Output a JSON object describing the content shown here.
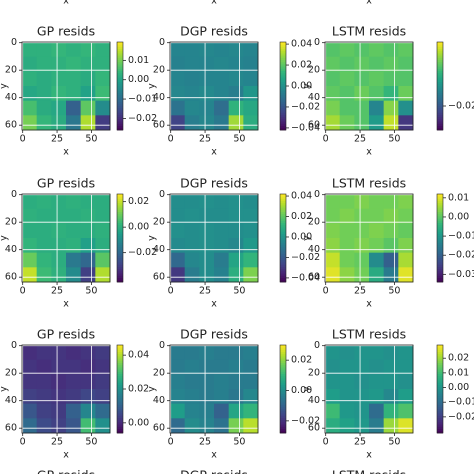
{
  "chart_data": [
    {
      "type": "heatmap",
      "title": "GP resids",
      "xlabel": "x",
      "ylabel": "y",
      "xlim": [
        -0.5,
        63.5
      ],
      "ylim": [
        63.5,
        -0.5
      ],
      "xticks": [
        0,
        25,
        50
      ],
      "yticks": [
        0,
        20,
        40,
        60
      ],
      "grid": true,
      "colormap": "viridis",
      "clim": [
        -0.026,
        0.0195
      ],
      "cticks": [
        {
          "value": 0.01,
          "label": "0.01"
        },
        {
          "value": 0,
          "label": "0.00"
        },
        {
          "value": -0.01,
          "label": "−0.01"
        },
        {
          "value": -0.02,
          "label": "−0.02"
        }
      ],
      "values": [
        [
          0.003,
          0.003,
          0.004,
          0.003,
          0.004,
          0.003
        ],
        [
          0.002,
          0.003,
          0.003,
          0.004,
          0.003,
          0.003
        ],
        [
          0.003,
          0.002,
          0.003,
          0.003,
          0.002,
          0.004
        ],
        [
          0.001,
          0.002,
          0.004,
          0.003,
          0.0,
          0.005
        ],
        [
          0.006,
          0.002,
          0.001,
          -0.012,
          0.008,
          -0.004
        ],
        [
          0.01,
          0.004,
          0.002,
          -0.008,
          0.014,
          -0.018
        ]
      ]
    },
    {
      "type": "heatmap",
      "title": "DGP resids",
      "xlabel": "x",
      "ylabel": "y",
      "xlim": [
        -0.5,
        63.5
      ],
      "ylim": [
        63.5,
        -0.5
      ],
      "xticks": [
        0,
        25,
        50
      ],
      "yticks": [
        0,
        20,
        40,
        60
      ],
      "grid": true,
      "colormap": "viridis",
      "clim": [
        -0.042,
        0.042
      ],
      "cticks": [
        {
          "value": 0.04,
          "label": "0.04"
        },
        {
          "value": 0.02,
          "label": "0.02"
        },
        {
          "value": 0,
          "label": "0.00"
        },
        {
          "value": -0.02,
          "label": "−0.02"
        },
        {
          "value": -0.04,
          "label": "−0.04"
        }
      ],
      "values": [
        [
          -0.004,
          -0.004,
          -0.003,
          -0.004,
          -0.003,
          -0.004
        ],
        [
          -0.005,
          -0.004,
          -0.004,
          -0.003,
          -0.004,
          -0.005
        ],
        [
          -0.004,
          -0.005,
          -0.004,
          -0.004,
          -0.003,
          -0.004
        ],
        [
          -0.003,
          -0.004,
          -0.002,
          -0.004,
          -0.006,
          0.002
        ],
        [
          -0.01,
          -0.003,
          -0.004,
          -0.012,
          0.012,
          0.008
        ],
        [
          -0.025,
          -0.006,
          -0.003,
          -0.008,
          0.03,
          0.01
        ]
      ]
    },
    {
      "type": "heatmap",
      "title": "LSTM resids",
      "xlabel": "x",
      "ylabel": "y",
      "xlim": [
        -0.5,
        63.5
      ],
      "ylim": [
        63.5,
        -0.5
      ],
      "xticks": [
        0,
        25,
        50
      ],
      "yticks": [
        0,
        20,
        40,
        60
      ],
      "grid": true,
      "colormap": "viridis",
      "clim": [
        -0.032,
        0.012
      ],
      "cticks": [
        {
          "value": -0.02,
          "label": "−0.02"
        }
      ],
      "values": [
        [
          0.0,
          0.001,
          0.0,
          0.001,
          0.0,
          0.001
        ],
        [
          0.001,
          0.0,
          0.001,
          0.0,
          0.001,
          0.0
        ],
        [
          0.0,
          0.001,
          0.0,
          0.001,
          0.0,
          0.0
        ],
        [
          0.001,
          0.0,
          0.002,
          0.0,
          -0.003,
          0.002
        ],
        [
          0.003,
          0.0,
          0.0,
          -0.012,
          0.004,
          -0.01
        ],
        [
          0.006,
          0.002,
          0.0,
          -0.008,
          0.008,
          -0.025
        ]
      ]
    },
    {
      "type": "heatmap",
      "title": "GP resids",
      "xlabel": "x",
      "ylabel": "y",
      "xlim": [
        -0.5,
        63.5
      ],
      "ylim": [
        63.5,
        -0.5
      ],
      "xticks": [
        0,
        25,
        50
      ],
      "yticks": [
        0,
        20,
        40,
        60
      ],
      "grid": true,
      "colormap": "viridis",
      "clim": [
        -0.043,
        0.026
      ],
      "cticks": [
        {
          "value": 0.02,
          "label": "0.02"
        },
        {
          "value": 0,
          "label": "0.00"
        },
        {
          "value": -0.02,
          "label": "−0.02"
        }
      ],
      "values": [
        [
          0.0,
          0.001,
          0.0,
          0.001,
          0.0,
          0.0
        ],
        [
          0.001,
          0.0,
          0.0,
          0.0,
          0.001,
          0.0
        ],
        [
          0.0,
          0.0,
          0.001,
          0.0,
          0.0,
          0.001
        ],
        [
          0.002,
          0.0,
          0.0,
          0.001,
          -0.004,
          0.0
        ],
        [
          0.01,
          0.002,
          0.0,
          -0.015,
          -0.02,
          0.008
        ],
        [
          0.02,
          0.004,
          0.001,
          -0.01,
          -0.03,
          0.018
        ]
      ]
    },
    {
      "type": "heatmap",
      "title": "DGP resids",
      "xlabel": "x",
      "ylabel": "y",
      "xlim": [
        -0.5,
        63.5
      ],
      "ylim": [
        63.5,
        -0.5
      ],
      "xticks": [
        0,
        25,
        50
      ],
      "yticks": [
        0,
        20,
        40,
        60
      ],
      "grid": true,
      "colormap": "viridis",
      "clim": [
        -0.044,
        0.042
      ],
      "cticks": [
        {
          "value": 0.04,
          "label": "0.04"
        },
        {
          "value": 0.02,
          "label": "0.02"
        },
        {
          "value": 0,
          "label": "0.00"
        },
        {
          "value": -0.02,
          "label": "−0.02"
        },
        {
          "value": -0.04,
          "label": "−0.04"
        }
      ],
      "values": [
        [
          -0.002,
          -0.002,
          -0.001,
          -0.002,
          -0.001,
          -0.002
        ],
        [
          -0.002,
          -0.001,
          -0.002,
          -0.002,
          -0.001,
          -0.001
        ],
        [
          -0.001,
          -0.002,
          -0.001,
          -0.002,
          -0.002,
          -0.001
        ],
        [
          -0.003,
          -0.002,
          -0.001,
          -0.002,
          -0.004,
          0.002
        ],
        [
          -0.015,
          -0.004,
          -0.002,
          -0.008,
          0.006,
          0.012
        ],
        [
          -0.03,
          -0.008,
          -0.002,
          -0.006,
          0.01,
          0.025
        ]
      ]
    },
    {
      "type": "heatmap",
      "title": "LSTM resids",
      "xlabel": "x",
      "ylabel": "y",
      "xlim": [
        -0.5,
        63.5
      ],
      "ylim": [
        63.5,
        -0.5
      ],
      "xticks": [
        0,
        25,
        50
      ],
      "yticks": [
        0,
        20,
        40,
        60
      ],
      "grid": true,
      "colormap": "viridis",
      "clim": [
        -0.034,
        0.012
      ],
      "cticks": [
        {
          "value": 0.01,
          "label": "0.01"
        },
        {
          "value": 0,
          "label": "0.00"
        },
        {
          "value": -0.01,
          "label": "−0.01"
        },
        {
          "value": -0.02,
          "label": "−0.02"
        },
        {
          "value": -0.03,
          "label": "−0.03"
        }
      ],
      "values": [
        [
          0.002,
          0.002,
          0.003,
          0.002,
          0.002,
          0.003
        ],
        [
          0.002,
          0.003,
          0.002,
          0.002,
          0.003,
          0.002
        ],
        [
          0.003,
          0.002,
          0.002,
          0.003,
          0.002,
          0.001
        ],
        [
          0.004,
          0.002,
          0.003,
          0.002,
          0.0,
          0.003
        ],
        [
          0.008,
          0.002,
          0.001,
          -0.012,
          -0.02,
          0.006
        ],
        [
          0.01,
          0.004,
          0.002,
          -0.006,
          -0.015,
          0.01
        ]
      ]
    },
    {
      "type": "heatmap",
      "title": "GP resids",
      "xlabel": "x",
      "ylabel": "y",
      "xlim": [
        -0.5,
        63.5
      ],
      "ylim": [
        63.5,
        -0.5
      ],
      "xticks": [
        0,
        25,
        50
      ],
      "yticks": [
        0,
        20,
        40,
        60
      ],
      "grid": true,
      "colormap": "viridis",
      "clim": [
        -0.006,
        0.046
      ],
      "cticks": [
        {
          "value": 0.04,
          "label": "0.04"
        },
        {
          "value": 0.02,
          "label": "0.02"
        },
        {
          "value": 0,
          "label": "0.00"
        }
      ],
      "values": [
        [
          0.001,
          0.002,
          0.002,
          0.001,
          0.002,
          0.003
        ],
        [
          0.002,
          0.001,
          0.002,
          0.002,
          0.001,
          0.002
        ],
        [
          0.002,
          0.002,
          0.001,
          0.002,
          0.002,
          0.003
        ],
        [
          0.004,
          0.003,
          0.002,
          0.003,
          0.005,
          0.004
        ],
        [
          0.008,
          0.004,
          0.003,
          0.01,
          0.018,
          0.012
        ],
        [
          0.012,
          0.006,
          0.004,
          0.008,
          0.03,
          0.02
        ]
      ]
    },
    {
      "type": "heatmap",
      "title": "DGP resids",
      "xlabel": "x",
      "ylabel": "y",
      "xlim": [
        -0.5,
        63.5
      ],
      "ylim": [
        63.5,
        -0.5
      ],
      "xticks": [
        0,
        25,
        50
      ],
      "yticks": [
        0,
        20,
        40,
        60
      ],
      "grid": true,
      "colormap": "viridis",
      "clim": [
        -0.028,
        0.03
      ],
      "cticks": [
        {
          "value": 0.02,
          "label": "0.02"
        },
        {
          "value": 0,
          "label": "0.00"
        },
        {
          "value": -0.02,
          "label": "−0.02"
        }
      ],
      "values": [
        [
          -0.004,
          -0.004,
          -0.003,
          -0.004,
          -0.004,
          -0.003
        ],
        [
          -0.004,
          -0.003,
          -0.004,
          -0.004,
          -0.003,
          -0.004
        ],
        [
          -0.003,
          -0.004,
          -0.004,
          -0.003,
          -0.004,
          -0.004
        ],
        [
          -0.002,
          -0.003,
          -0.004,
          -0.003,
          -0.005,
          -0.001
        ],
        [
          0.004,
          -0.002,
          -0.003,
          -0.01,
          0.006,
          0.01
        ],
        [
          -0.008,
          0.0,
          -0.002,
          -0.006,
          0.018,
          0.024
        ]
      ]
    },
    {
      "type": "heatmap",
      "title": "LSTM resids",
      "xlabel": "x",
      "ylabel": "y",
      "xlim": [
        -0.5,
        63.5
      ],
      "ylim": [
        63.5,
        -0.5
      ],
      "xticks": [
        0,
        25,
        50
      ],
      "yticks": [
        0,
        20,
        40,
        60
      ],
      "grid": true,
      "colormap": "viridis",
      "clim": [
        -0.031,
        0.029
      ],
      "cticks": [
        {
          "value": 0.02,
          "label": "0.02"
        },
        {
          "value": 0.01,
          "label": "0.01"
        },
        {
          "value": 0,
          "label": "0.00"
        },
        {
          "value": -0.01,
          "label": "−0.01"
        },
        {
          "value": -0.02,
          "label": "−0.02"
        }
      ],
      "values": [
        [
          0.0,
          -0.001,
          0.0,
          0.0,
          -0.001,
          0.0
        ],
        [
          -0.001,
          0.0,
          0.0,
          -0.001,
          0.0,
          0.0
        ],
        [
          0.0,
          0.0,
          -0.001,
          0.0,
          0.0,
          -0.001
        ],
        [
          0.002,
          0.0,
          0.0,
          0.001,
          -0.003,
          0.002
        ],
        [
          0.01,
          0.001,
          0.0,
          -0.01,
          0.008,
          0.012
        ],
        [
          0.006,
          0.003,
          0.001,
          -0.006,
          0.02,
          0.026
        ]
      ]
    }
  ],
  "cut_off": {
    "x_labels": [
      "x",
      "x",
      "x"
    ],
    "titles": [
      "GP resids",
      "DGP resids",
      "LSTM resids"
    ]
  }
}
